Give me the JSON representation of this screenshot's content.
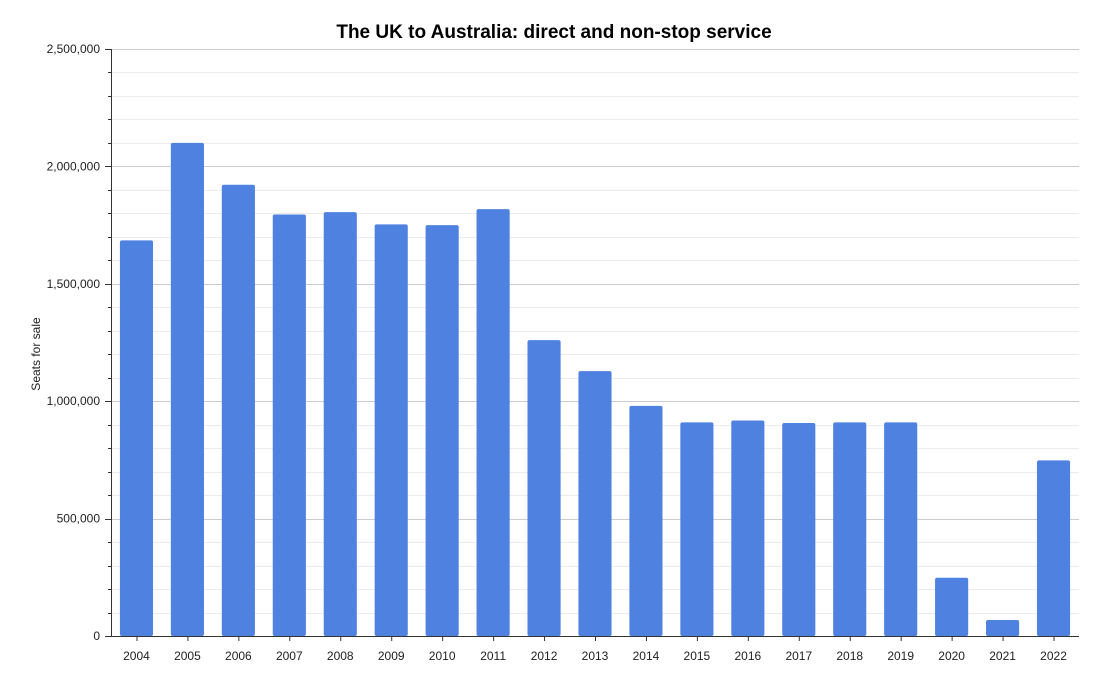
{
  "chart_data": {
    "type": "bar",
    "title": "The UK to Australia: direct and non-stop service",
    "xlabel": "",
    "ylabel": "Seats for sale",
    "ylim": [
      0,
      2500000
    ],
    "y_major_step": 500000,
    "y_minor_step": 100000,
    "y_tick_labels": [
      "0",
      "500,000",
      "1,000,000",
      "1,500,000",
      "2,000,000",
      "2,500,000"
    ],
    "categories": [
      "2004",
      "2005",
      "2006",
      "2007",
      "2008",
      "2009",
      "2010",
      "2011",
      "2012",
      "2013",
      "2014",
      "2015",
      "2016",
      "2017",
      "2018",
      "2019",
      "2020",
      "2021",
      "2022"
    ],
    "values": [
      1685000,
      2100000,
      1922000,
      1795000,
      1805000,
      1753000,
      1750000,
      1818000,
      1260000,
      1128000,
      980000,
      910000,
      918000,
      907000,
      910000,
      910000,
      248000,
      68000,
      748000
    ],
    "bar_color": "#4f81e1",
    "grid": true,
    "legend": "none"
  }
}
